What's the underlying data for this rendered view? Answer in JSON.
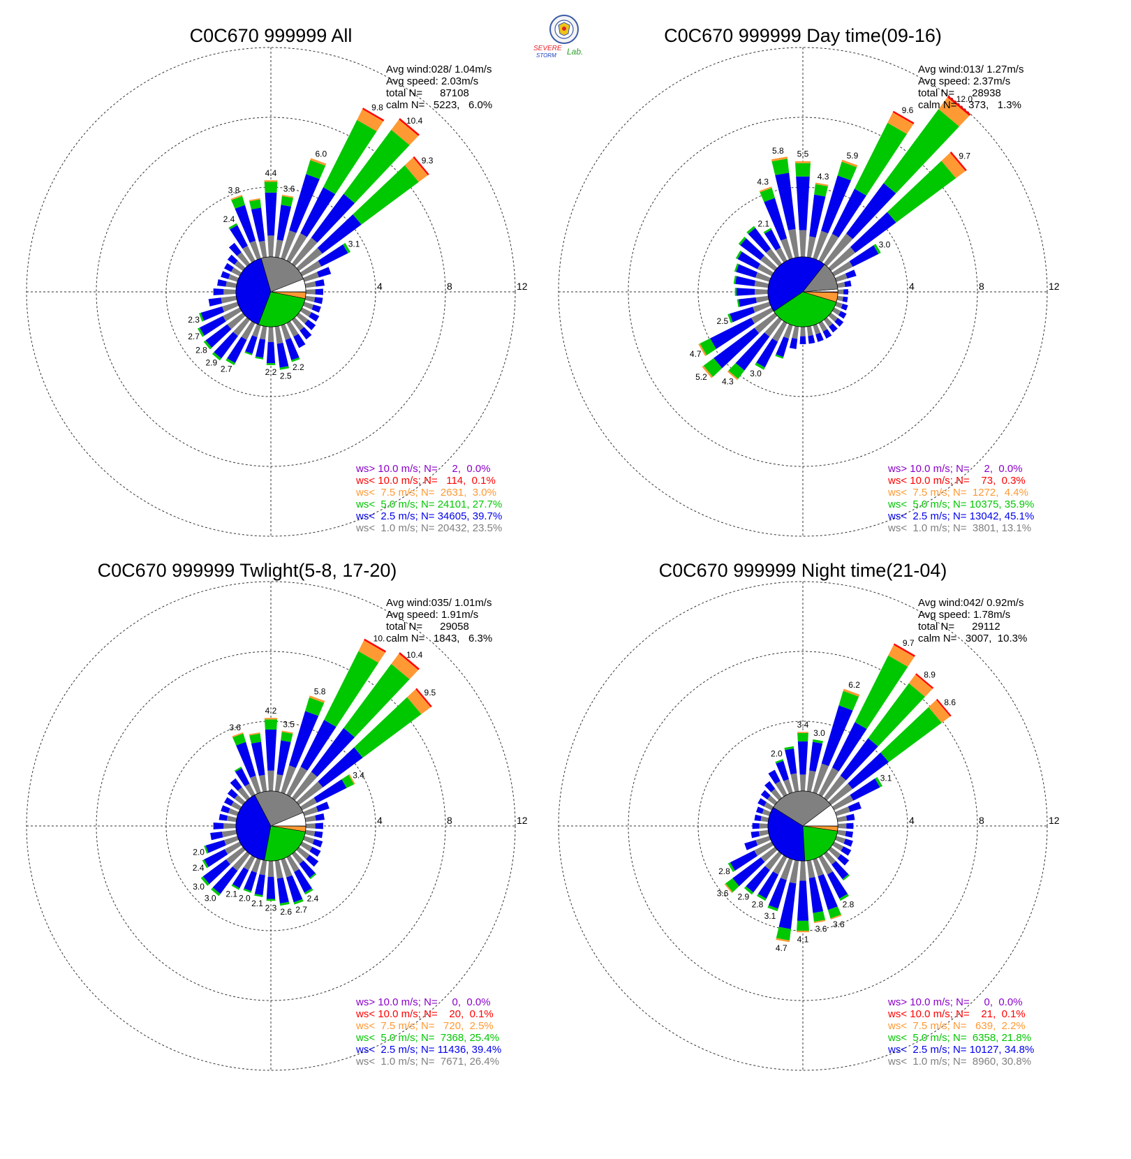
{
  "logo": {
    "word_severe": "SEVERE",
    "word_storm": "STORM",
    "word_lab": "Lab.",
    "colors": {
      "severe": "#e8262b",
      "storm": "#1d3fbf",
      "lab": "#2ca02c",
      "seal": "#3a5ba8"
    }
  },
  "legend_colors": [
    "#8b00c8",
    "#ff0000",
    "#ff9933",
    "#00c800",
    "#0000ee",
    "#808080"
  ],
  "ring_labels": [
    "4",
    "8",
    "12"
  ],
  "chart_data": [
    {
      "type": "wind-rose",
      "title": "C0C670 999999 All",
      "stats": {
        "avg_wind": "Avg wind:028/ 1.04m/s",
        "avg_speed": "Avg speed: 2.03m/s",
        "total": "total N=      87108",
        "calm": "calm N=   5223,   6.0%"
      },
      "legend": [
        "ws> 10.0 m/s; N=     2,  0.0%",
        "ws< 10.0 m/s; N=   114,  0.1%",
        "ws<  7.5 m/s; N=  2631,  3.0%",
        "ws<  5.0 m/s; N= 24101, 27.7%",
        "ws<  2.5 m/s; N= 34605, 39.7%",
        "ws<  1.0 m/s; N= 20432, 23.5%"
      ],
      "pie_shares": [
        6.0,
        23.5,
        39.7,
        27.7,
        3.0,
        0.1
      ],
      "rlim": [
        0,
        12
      ],
      "directions": [
        0,
        10,
        20,
        30,
        40,
        50,
        60,
        70,
        80,
        90,
        100,
        110,
        120,
        130,
        140,
        150,
        160,
        170,
        180,
        190,
        200,
        210,
        220,
        230,
        240,
        250,
        260,
        270,
        280,
        290,
        300,
        310,
        320,
        330,
        340,
        350
      ],
      "totals": [
        4.4,
        3.6,
        6.0,
        9.8,
        10.4,
        9.3,
        3.1,
        1.6,
        1.1,
        1.0,
        1.0,
        1.0,
        1.1,
        1.2,
        1.4,
        1.6,
        2.2,
        2.5,
        2.2,
        1.9,
        1.8,
        2.7,
        2.9,
        2.8,
        2.7,
        2.3,
        1.6,
        1.3,
        1.1,
        1.0,
        1.0,
        1.1,
        1.5,
        2.4,
        3.8,
        3.4
      ],
      "labels": [
        "4.4",
        "3.6",
        "6.0",
        "9.8",
        "10.4",
        "9.3",
        "3.1",
        "",
        "",
        "",
        "",
        "",
        "",
        "",
        "",
        "",
        "2.2",
        "2.5",
        "2.2",
        "",
        "",
        "2.7",
        "2.9",
        "2.8",
        "2.7",
        "2.3",
        "",
        "",
        "",
        "",
        "",
        "",
        "",
        "2.4",
        "3.8",
        ""
      ]
    },
    {
      "type": "wind-rose",
      "title": "C0C670 999999 Day time(09-16)",
      "stats": {
        "avg_wind": "Avg wind:013/ 1.27m/s",
        "avg_speed": "Avg speed: 2.37m/s",
        "total": "total N=      28938",
        "calm": "calm N=    373,   1.3%"
      },
      "legend": [
        "ws> 10.0 m/s; N=     2,  0.0%",
        "ws< 10.0 m/s; N=    73,  0.3%",
        "ws<  7.5 m/s; N=  1272,  4.4%",
        "ws<  5.0 m/s; N= 10375, 35.9%",
        "ws<  2.5 m/s; N= 13042, 45.1%",
        "ws<  1.0 m/s; N=  3801, 13.1%"
      ],
      "pie_shares": [
        1.3,
        13.1,
        45.1,
        35.9,
        4.4,
        0.3
      ],
      "rlim": [
        0,
        12
      ],
      "directions": [
        0,
        10,
        20,
        30,
        40,
        50,
        60,
        70,
        80,
        90,
        100,
        110,
        120,
        130,
        140,
        150,
        160,
        170,
        180,
        190,
        200,
        210,
        220,
        230,
        240,
        250,
        260,
        270,
        280,
        290,
        300,
        310,
        320,
        330,
        340,
        350
      ],
      "totals": [
        5.5,
        4.3,
        5.9,
        9.6,
        12.0,
        9.7,
        3.0,
        1.2,
        0.8,
        0.6,
        0.6,
        0.7,
        0.8,
        0.9,
        0.9,
        1.0,
        1.0,
        1.0,
        1.0,
        1.3,
        2.0,
        3.0,
        4.3,
        5.2,
        4.7,
        2.5,
        1.8,
        1.9,
        2.0,
        2.1,
        2.3,
        2.6,
        2.7,
        2.1,
        4.3,
        5.8
      ],
      "labels": [
        "5.5",
        "4.3",
        "5.9",
        "9.6",
        "12.0",
        "9.7",
        "3.0",
        "",
        "",
        "",
        "",
        "",
        "",
        "",
        "",
        "",
        "",
        "",
        "",
        "",
        "",
        "3.0",
        "4.3",
        "5.2",
        "4.7",
        "2.5",
        "",
        "",
        "",
        "",
        "",
        "",
        "",
        "2.1",
        "4.3",
        "5.8"
      ]
    },
    {
      "type": "wind-rose",
      "title": "C0C670 999999 Twlight(5-8, 17-20)",
      "stats": {
        "avg_wind": "Avg wind:035/ 1.01m/s",
        "avg_speed": "Avg speed: 1.91m/s",
        "total": "total N=      29058",
        "calm": "calm N=   1843,   6.3%"
      },
      "legend": [
        "ws> 10.0 m/s; N=     0,  0.0%",
        "ws< 10.0 m/s; N=    20,  0.1%",
        "ws<  7.5 m/s; N=   720,  2.5%",
        "ws<  5.0 m/s; N=  7368, 25.4%",
        "ws<  2.5 m/s; N= 11436, 39.4%",
        "ws<  1.0 m/s; N=  7671, 26.4%"
      ],
      "pie_shares": [
        6.3,
        26.4,
        39.4,
        25.4,
        2.5,
        0.1
      ],
      "rlim": [
        0,
        12
      ],
      "directions": [
        0,
        10,
        20,
        30,
        40,
        50,
        60,
        70,
        80,
        90,
        100,
        110,
        120,
        130,
        140,
        150,
        160,
        170,
        180,
        190,
        200,
        210,
        220,
        230,
        240,
        250,
        260,
        270,
        280,
        290,
        300,
        310,
        320,
        330,
        340,
        350
      ],
      "totals": [
        4.2,
        3.5,
        5.8,
        10.0,
        10.4,
        9.5,
        3.4,
        1.5,
        1.1,
        1.0,
        1.0,
        1.1,
        1.2,
        1.4,
        1.8,
        2.4,
        2.7,
        2.6,
        2.3,
        2.1,
        2.0,
        2.1,
        3.0,
        3.0,
        2.4,
        2.0,
        1.5,
        1.3,
        1.0,
        1.0,
        1.0,
        1.1,
        1.4,
        1.8,
        3.6,
        3.4
      ],
      "labels": [
        "4.2",
        "3.5",
        "5.8",
        "10.",
        "10.4",
        "9.5",
        "3.4",
        "",
        "",
        "",
        "",
        "",
        "",
        "",
        "",
        "2.4",
        "2.7",
        "2.6",
        "2.3",
        "2.1",
        "2.0",
        "2.1",
        "3.0",
        "3.0",
        "2.4",
        "2.0",
        "",
        "",
        "",
        "",
        "",
        "",
        "",
        "",
        "3.6",
        ""
      ]
    },
    {
      "type": "wind-rose",
      "title": "C0C670 999999 Night time(21-04)",
      "stats": {
        "avg_wind": "Avg wind:042/ 0.92m/s",
        "avg_speed": "Avg speed: 1.78m/s",
        "total": "total N=      29112",
        "calm": "calm N=   3007,  10.3%"
      },
      "legend": [
        "ws> 10.0 m/s; N=     0,  0.0%",
        "ws< 10.0 m/s; N=    21,  0.1%",
        "ws<  7.5 m/s; N=   639,  2.2%",
        "ws<  5.0 m/s; N=  6358, 21.8%",
        "ws<  2.5 m/s; N= 10127, 34.8%",
        "ws<  1.0 m/s; N=  8960, 30.8%"
      ],
      "pie_shares": [
        10.3,
        30.8,
        34.8,
        21.8,
        2.2,
        0.1
      ],
      "rlim": [
        0,
        12
      ],
      "directions": [
        0,
        10,
        20,
        30,
        40,
        50,
        60,
        70,
        80,
        90,
        100,
        110,
        120,
        130,
        140,
        150,
        160,
        170,
        180,
        190,
        200,
        210,
        220,
        230,
        240,
        250,
        260,
        270,
        280,
        290,
        300,
        310,
        320,
        330,
        340,
        350
      ],
      "totals": [
        3.4,
        3.0,
        6.2,
        9.7,
        8.9,
        8.6,
        3.1,
        1.5,
        1.0,
        0.9,
        0.9,
        1.0,
        1.1,
        1.3,
        1.9,
        2.8,
        3.6,
        3.6,
        4.1,
        4.7,
        3.1,
        2.8,
        2.9,
        3.6,
        2.8,
        1.5,
        1.0,
        0.9,
        0.8,
        0.8,
        0.9,
        1.0,
        1.2,
        1.6,
        2.0,
        2.6
      ],
      "labels": [
        "3.4",
        "3.0",
        "6.2",
        "9.7",
        "8.9",
        "8.6",
        "3.1",
        "",
        "",
        "",
        "",
        "",
        "",
        "",
        "",
        "2.8",
        "3.6",
        "3.6",
        "4.1",
        "4.7",
        "3.1",
        "2.8",
        "2.9",
        "3.6",
        "2.8",
        "",
        "",
        "",
        "",
        "",
        "",
        "",
        "",
        "",
        "2.0",
        ""
      ]
    }
  ]
}
